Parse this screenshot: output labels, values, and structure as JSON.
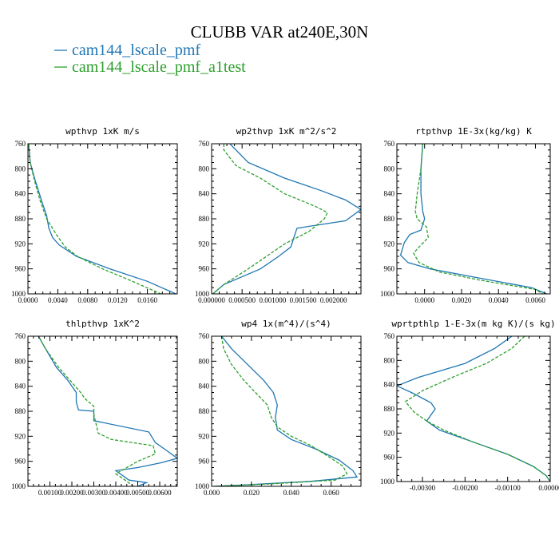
{
  "figure": {
    "title": "CLUBB VAR at240E,30N"
  },
  "legend": [
    {
      "label": "cam144_lscale_pmf",
      "color": "#1f77b4",
      "dash": "solid"
    },
    {
      "label": "cam144_lscale_pmf_a1test",
      "color": "#2ca02c",
      "dash": "dashed"
    }
  ],
  "chart_data": [
    {
      "type": "line",
      "title": "wpthvp   1xK m/s",
      "xlim": [
        0,
        0.02
      ],
      "ylim": [
        760,
        1000
      ],
      "y_inverted": true,
      "xticks": [
        "0.0000",
        "0.0040",
        "0.0080",
        "0.0120",
        "0.0160"
      ],
      "xtick_values": [
        0,
        0.004,
        0.008,
        0.012,
        0.016
      ],
      "yticks": [
        "760",
        "800",
        "840",
        "880",
        "920",
        "960",
        "1000"
      ],
      "ytick_values": [
        760,
        800,
        840,
        880,
        920,
        960,
        1000
      ],
      "series": [
        {
          "name": "cam144_lscale_pmf",
          "points": [
            [
              0.0001,
              760
            ],
            [
              0.0003,
              790
            ],
            [
              0.001,
              820
            ],
            [
              0.0018,
              850
            ],
            [
              0.0025,
              875
            ],
            [
              0.0028,
              895
            ],
            [
              0.0033,
              910
            ],
            [
              0.0042,
              922
            ],
            [
              0.0065,
              940
            ],
            [
              0.011,
              960
            ],
            [
              0.016,
              980
            ],
            [
              0.0198,
              1000
            ]
          ]
        },
        {
          "name": "cam144_lscale_pmf_a1test",
          "points": [
            [
              0.0001,
              760
            ],
            [
              0.0003,
              790
            ],
            [
              0.0009,
              820
            ],
            [
              0.0016,
              850
            ],
            [
              0.0025,
              880
            ],
            [
              0.0038,
              905
            ],
            [
              0.005,
              925
            ],
            [
              0.0066,
              940
            ],
            [
              0.01,
              960
            ],
            [
              0.014,
              980
            ],
            [
              0.0178,
              1000
            ]
          ]
        }
      ]
    },
    {
      "type": "line",
      "title": "wp2thvp   1xK m^2/s^2",
      "xlim": [
        0,
        0.00245
      ],
      "ylim": [
        760,
        1000
      ],
      "y_inverted": true,
      "xticks": [
        "0.000000",
        "0.000500",
        "0.001000",
        "0.001500",
        "0.002000"
      ],
      "xtick_values": [
        0,
        0.0005,
        0.001,
        0.0015,
        0.002
      ],
      "yticks": [
        "760",
        "800",
        "840",
        "880",
        "920",
        "960",
        "1000"
      ],
      "ytick_values": [
        760,
        800,
        840,
        880,
        920,
        960,
        1000
      ],
      "series": [
        {
          "name": "cam144_lscale_pmf",
          "points": [
            [
              0.0003,
              760
            ],
            [
              0.0006,
              790
            ],
            [
              0.0012,
              815
            ],
            [
              0.0018,
              835
            ],
            [
              0.0022,
              850
            ],
            [
              0.00245,
              865
            ],
            [
              0.0022,
              883
            ],
            [
              0.0014,
              895
            ],
            [
              0.00135,
              910
            ],
            [
              0.0013,
              925
            ],
            [
              0.0011,
              940
            ],
            [
              0.0008,
              960
            ],
            [
              0.0002,
              985
            ],
            [
              2e-05,
              1000
            ]
          ]
        },
        {
          "name": "cam144_lscale_pmf_a1test",
          "points": [
            [
              0.0002,
              760
            ],
            [
              0.0002,
              770
            ],
            [
              0.0004,
              795
            ],
            [
              0.0008,
              815
            ],
            [
              0.0012,
              840
            ],
            [
              0.0017,
              860
            ],
            [
              0.0019,
              870
            ],
            [
              0.00185,
              880
            ],
            [
              0.0016,
              900
            ],
            [
              0.0012,
              920
            ],
            [
              0.0009,
              940
            ],
            [
              0.0006,
              960
            ],
            [
              0.0002,
              985
            ],
            [
              2e-05,
              1000
            ]
          ]
        }
      ]
    },
    {
      "type": "line",
      "title": "rtpthvp   1E-3x(kg/kg) K",
      "xlim": [
        -0.0015,
        0.0068
      ],
      "ylim": [
        760,
        1000
      ],
      "y_inverted": true,
      "xticks": [
        "0.0000",
        "0.0020",
        "0.0040",
        "0.0060"
      ],
      "xtick_values": [
        0,
        0.002,
        0.004,
        0.006
      ],
      "yticks": [
        "760",
        "800",
        "840",
        "880",
        "920",
        "960",
        "1000"
      ],
      "ytick_values": [
        760,
        800,
        840,
        880,
        920,
        960,
        1000
      ],
      "series": [
        {
          "name": "cam144_lscale_pmf",
          "points": [
            [
              -0.0001,
              760
            ],
            [
              -0.0002,
              800
            ],
            [
              -0.0002,
              840
            ],
            [
              -0.0001,
              868
            ],
            [
              0.0,
              880
            ],
            [
              -0.0002,
              898
            ],
            [
              -0.0008,
              905
            ],
            [
              -0.0011,
              918
            ],
            [
              -0.0013,
              938
            ],
            [
              -0.0009,
              950
            ],
            [
              0.0003,
              960
            ],
            [
              0.003,
              975
            ],
            [
              0.0058,
              990
            ],
            [
              0.0066,
              1000
            ]
          ]
        },
        {
          "name": "cam144_lscale_pmf_a1test",
          "points": [
            [
              -0.0001,
              760
            ],
            [
              -0.0002,
              800
            ],
            [
              -0.0004,
              840
            ],
            [
              -0.0005,
              868
            ],
            [
              -0.0004,
              880
            ],
            [
              0.0001,
              893
            ],
            [
              0.0002,
              910
            ],
            [
              -0.0003,
              925
            ],
            [
              -0.0006,
              935
            ],
            [
              -0.0003,
              950
            ],
            [
              0.0008,
              965
            ],
            [
              0.003,
              978
            ],
            [
              0.006,
              993
            ],
            [
              0.0064,
              1000
            ]
          ]
        }
      ]
    },
    {
      "type": "line",
      "title": "thlpthvp   1xK^2",
      "xlim": [
        0.0,
        0.0068
      ],
      "ylim": [
        760,
        1000
      ],
      "y_inverted": true,
      "xticks": [
        "0.00100",
        "0.00200",
        "0.00300",
        "0.00400",
        "0.00500",
        "0.00600"
      ],
      "xtick_values": [
        0.001,
        0.002,
        0.003,
        0.004,
        0.005,
        0.006
      ],
      "yticks": [
        "760",
        "800",
        "840",
        "880",
        "920",
        "960",
        "1000"
      ],
      "ytick_values": [
        760,
        800,
        840,
        880,
        920,
        960,
        1000
      ],
      "series": [
        {
          "name": "cam144_lscale_pmf",
          "points": [
            [
              0.0004,
              755
            ],
            [
              0.0008,
              780
            ],
            [
              0.0013,
              810
            ],
            [
              0.0018,
              830
            ],
            [
              0.0022,
              850
            ],
            [
              0.0022,
              865
            ],
            [
              0.0023,
              878
            ],
            [
              0.003,
              880
            ],
            [
              0.003,
              895
            ],
            [
              0.0055,
              913
            ],
            [
              0.0058,
              930
            ],
            [
              0.0064,
              945
            ],
            [
              0.0068,
              955
            ],
            [
              0.0061,
              962
            ],
            [
              0.005,
              970
            ],
            [
              0.004,
              975
            ],
            [
              0.0046,
              990
            ],
            [
              0.0054,
              994
            ],
            [
              0.005,
              1000
            ]
          ]
        },
        {
          "name": "cam144_lscale_pmf_a1test",
          "points": [
            [
              0.0004,
              755
            ],
            [
              0.0008,
              780
            ],
            [
              0.0014,
              810
            ],
            [
              0.0019,
              830
            ],
            [
              0.0024,
              850
            ],
            [
              0.0026,
              860
            ],
            [
              0.003,
              872
            ],
            [
              0.003,
              885
            ],
            [
              0.0032,
              915
            ],
            [
              0.0038,
              925
            ],
            [
              0.0057,
              935
            ],
            [
              0.0058,
              948
            ],
            [
              0.005,
              960
            ],
            [
              0.004,
              980
            ],
            [
              0.0045,
              992
            ],
            [
              0.0048,
              1000
            ]
          ]
        }
      ]
    },
    {
      "type": "line",
      "title": "wp4   1x(m^4)/(s^4)",
      "xlim": [
        0.0,
        0.075
      ],
      "ylim": [
        760,
        1000
      ],
      "y_inverted": true,
      "xticks": [
        "0.000",
        "0.020",
        "0.040",
        "0.060"
      ],
      "xtick_values": [
        0,
        0.02,
        0.04,
        0.06
      ],
      "yticks": [
        "760",
        "800",
        "840",
        "880",
        "920",
        "960",
        "1000"
      ],
      "ytick_values": [
        760,
        800,
        840,
        880,
        920,
        960,
        1000
      ],
      "series": [
        {
          "name": "cam144_lscale_pmf",
          "points": [
            [
              0.005,
              760
            ],
            [
              0.01,
              780
            ],
            [
              0.018,
              805
            ],
            [
              0.026,
              830
            ],
            [
              0.031,
              850
            ],
            [
              0.033,
              870
            ],
            [
              0.032,
              890
            ],
            [
              0.033,
              910
            ],
            [
              0.04,
              925
            ],
            [
              0.052,
              940
            ],
            [
              0.064,
              958
            ],
            [
              0.071,
              975
            ],
            [
              0.073,
              985
            ],
            [
              0.05,
              992
            ],
            [
              0.015,
              998
            ],
            [
              0.001,
              1000
            ]
          ]
        },
        {
          "name": "cam144_lscale_pmf_a1test",
          "points": [
            [
              0.005,
              760
            ],
            [
              0.006,
              780
            ],
            [
              0.01,
              805
            ],
            [
              0.016,
              830
            ],
            [
              0.022,
              850
            ],
            [
              0.028,
              870
            ],
            [
              0.03,
              890
            ],
            [
              0.033,
              905
            ],
            [
              0.04,
              920
            ],
            [
              0.05,
              935
            ],
            [
              0.06,
              955
            ],
            [
              0.066,
              968
            ],
            [
              0.068,
              980
            ],
            [
              0.062,
              990
            ],
            [
              0.03,
              996
            ],
            [
              0.002,
              1000
            ]
          ]
        }
      ]
    },
    {
      "type": "line",
      "title": "wprtpthlp   1-E-3x(m kg K)/(s kg)",
      "xlim": [
        -0.0036,
        0.0
      ],
      "ylim": [
        760,
        1000
      ],
      "y_inverted": true,
      "xticks": [
        "-0.00300",
        "-0.00200",
        "-0.00100",
        "0.00000"
      ],
      "xtick_values": [
        -0.003,
        -0.002,
        -0.001,
        0.0
      ],
      "yticks": [
        "760",
        "800",
        "840",
        "880",
        "920",
        "960",
        "1000"
      ],
      "ytick_values": [
        760,
        800,
        840,
        880,
        920,
        960,
        1000
      ],
      "series": [
        {
          "name": "cam144_lscale_pmf",
          "points": [
            [
              -0.0009,
              760
            ],
            [
              -0.0013,
              780
            ],
            [
              -0.002,
              805
            ],
            [
              -0.0031,
              828
            ],
            [
              -0.0036,
              842
            ],
            [
              -0.0032,
              855
            ],
            [
              -0.0028,
              870
            ],
            [
              -0.0027,
              880
            ],
            [
              -0.0029,
              900
            ],
            [
              -0.0026,
              915
            ],
            [
              -0.0018,
              935
            ],
            [
              -0.001,
              955
            ],
            [
              -0.0004,
              975
            ],
            [
              -0.0001,
              990
            ],
            [
              0.0,
              1000
            ]
          ]
        },
        {
          "name": "cam144_lscale_pmf_a1test",
          "points": [
            [
              -0.0006,
              760
            ],
            [
              -0.0009,
              780
            ],
            [
              -0.0015,
              805
            ],
            [
              -0.0023,
              828
            ],
            [
              -0.003,
              850
            ],
            [
              -0.0034,
              868
            ],
            [
              -0.0032,
              885
            ],
            [
              -0.0029,
              900
            ],
            [
              -0.0025,
              915
            ],
            [
              -0.0018,
              935
            ],
            [
              -0.001,
              955
            ],
            [
              -0.0004,
              975
            ],
            [
              -0.0001,
              990
            ],
            [
              0.0,
              1000
            ]
          ]
        }
      ]
    }
  ]
}
